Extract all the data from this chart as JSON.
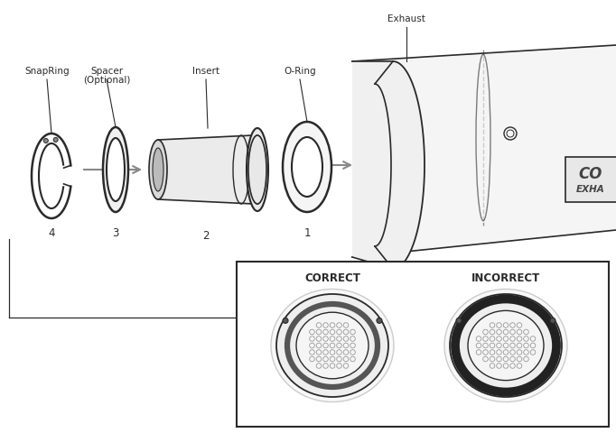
{
  "bg_color": "#ffffff",
  "line_color": "#2a2a2a",
  "gray_light": "#f0f0f0",
  "gray_mid": "#d8d8d8",
  "gray_dark": "#888888",
  "arrow_color": "#888888",
  "labels": {
    "snap_ring": "SnapRing",
    "spacer_line1": "Spacer",
    "spacer_line2": "(Optional)",
    "insert": "Insert",
    "o_ring": "O-Ring",
    "exhaust": "Exhaust",
    "num1": "1",
    "num2": "2",
    "num3": "3",
    "num4": "4",
    "correct": "CORRECT",
    "incorrect": "INCORRECT"
  }
}
